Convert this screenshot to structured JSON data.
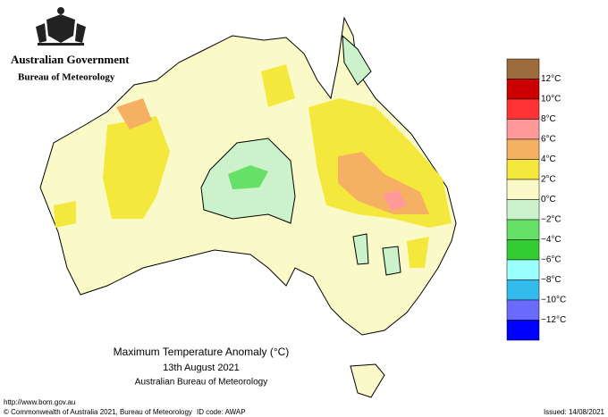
{
  "header": {
    "government": "Australian Government",
    "agency": "Bureau of Meteorology"
  },
  "map": {
    "title": "Maximum Temperature Anomaly (°C)",
    "date": "13th August 2021",
    "source": "Australian Bureau of Meteorology"
  },
  "legend": {
    "colors": [
      "#9c6b3c",
      "#cc0000",
      "#ff3333",
      "#ff9a9a",
      "#f5b063",
      "#f5e83c",
      "#fafac8",
      "#ccf2cc",
      "#66e066",
      "#33cc33",
      "#99ffff",
      "#33bbee",
      "#6a6aff",
      "#0000ff"
    ],
    "labels": [
      "12°C",
      "10°C",
      "8°C",
      "6°C",
      "4°C",
      "2°C",
      "0°C",
      "−2°C",
      "−4°C",
      "−6°C",
      "−8°C",
      "−10°C",
      "−12°C"
    ]
  },
  "footer": {
    "url": "http://www.bom.gov.au",
    "copyright": "© Commonwealth of Australia 2021, Bureau of Meteorology",
    "id_code": "ID code: AWAP",
    "issued": "Issued: 14/08/2021"
  }
}
